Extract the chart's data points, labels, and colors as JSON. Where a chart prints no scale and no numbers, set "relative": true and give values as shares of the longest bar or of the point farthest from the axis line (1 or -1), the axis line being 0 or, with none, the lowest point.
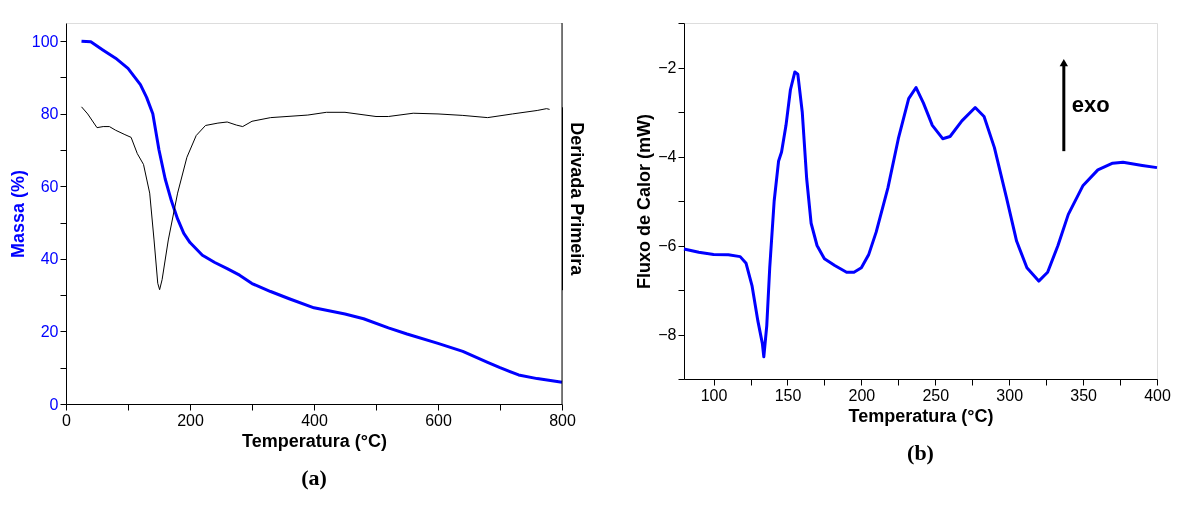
{
  "chart_data": [
    {
      "type": "line",
      "title": "(a)",
      "xlabel": "Temperatura (°C)",
      "ylabel": "Massa (%)",
      "xlim": [
        0,
        800
      ],
      "xticks": [
        0,
        {
          "value": 100,
          "label": null
        },
        200,
        {
          "value": 300,
          "label": null
        },
        400,
        {
          "value": 500,
          "label": null
        },
        600,
        {
          "value": 700,
          "label": null
        },
        800
      ],
      "ylim": [
        0,
        105
      ],
      "yticks": [
        0,
        {
          "value": 10,
          "label": null
        },
        20,
        {
          "value": 30,
          "label": null
        },
        40,
        {
          "value": 50,
          "label": null
        },
        60,
        {
          "value": 70,
          "label": null
        },
        80,
        {
          "value": 90,
          "label": null
        },
        100
      ],
      "series": [
        {
          "color": "#0000ff",
          "x": [
            25,
            40,
            60,
            80,
            100,
            120,
            130,
            140,
            150,
            160,
            170,
            180,
            190,
            200,
            220,
            240,
            260,
            280,
            300,
            330,
            360,
            400,
            450,
            480,
            520,
            550,
            600,
            640,
            680,
            700,
            730,
            760,
            800
          ],
          "values": [
            100,
            99.8,
            97.5,
            95.3,
            92.5,
            88,
            84.5,
            80,
            70,
            62,
            56,
            51,
            47,
            44.5,
            41,
            39,
            37.3,
            35.5,
            33.2,
            31,
            29,
            26.5,
            24.8,
            23.5,
            21,
            19.3,
            16.7,
            14.5,
            11.5,
            10,
            8,
            7,
            6
          ]
        }
      ]
    },
    {
      "type": "line",
      "ylabel": "Derivada Primeira",
      "relative": true,
      "xlim": [
        0,
        800
      ],
      "series": [
        {
          "color": "#000000",
          "x": [
            25,
            35,
            50,
            60,
            70,
            80,
            95,
            105,
            115,
            125,
            135,
            142,
            148,
            151,
            155,
            165,
            180,
            195,
            210,
            225,
            245,
            260,
            275,
            285,
            300,
            330,
            390,
            420,
            450,
            500,
            520,
            560,
            600,
            640,
            680,
            720,
            760,
            775,
            780
          ],
          "values": [
            1.0,
            0.961,
            0.886,
            0.892,
            0.892,
            0.872,
            0.848,
            0.833,
            0.744,
            0.685,
            0.528,
            0.272,
            0.035,
            0,
            0.055,
            0.272,
            0.528,
            0.724,
            0.843,
            0.898,
            0.911,
            0.917,
            0.9,
            0.892,
            0.921,
            0.941,
            0.955,
            0.97,
            0.97,
            0.947,
            0.947,
            0.965,
            0.961,
            0.953,
            0.941,
            0.961,
            0.98,
            0.99,
            0.986
          ]
        }
      ]
    },
    {
      "type": "line",
      "title": "(b)",
      "xlabel": "Temperatura (°C)",
      "ylabel": "Fluxo de Calor (mW)",
      "annotations": [
        "exo"
      ],
      "xlim": [
        80,
        400
      ],
      "xticks": [
        100,
        {
          "value": 125,
          "label": null
        },
        150,
        {
          "value": 175,
          "label": null
        },
        200,
        {
          "value": 225,
          "label": null
        },
        250,
        {
          "value": 275,
          "label": null
        },
        300,
        {
          "value": 325,
          "label": null
        },
        350,
        {
          "value": 375,
          "label": null
        },
        400
      ],
      "ylim": [
        -9,
        -1
      ],
      "yticks": [
        {
          "value": -9,
          "label": null
        },
        -8,
        {
          "value": -7,
          "label": null
        },
        -6,
        {
          "value": -5,
          "label": null
        },
        -4,
        {
          "value": -3,
          "label": null
        },
        -2,
        {
          "value": -1,
          "label": null
        }
      ],
      "series": [
        {
          "color": "#0000ff",
          "x": [
            80,
            90,
            100,
            110,
            118,
            122,
            126,
            130,
            133,
            134,
            136,
            138,
            141,
            144,
            146,
            149,
            152,
            155,
            157,
            160,
            163,
            166,
            170,
            175,
            182,
            190,
            195,
            200,
            205,
            210,
            218,
            225,
            232,
            237,
            242,
            248,
            255,
            260,
            268,
            277,
            283,
            290,
            298,
            305,
            312,
            320,
            326,
            333,
            340,
            350,
            360,
            370,
            377,
            390,
            400
          ],
          "values": [
            -6.08,
            -6.15,
            -6.2,
            -6.21,
            -6.25,
            -6.4,
            -6.9,
            -7.7,
            -8.2,
            -8.5,
            -7.8,
            -6.5,
            -5.0,
            -4.1,
            -3.9,
            -3.3,
            -2.5,
            -2.1,
            -2.15,
            -3.0,
            -4.5,
            -5.5,
            -6.0,
            -6.3,
            -6.45,
            -6.6,
            -6.6,
            -6.5,
            -6.2,
            -5.7,
            -4.7,
            -3.6,
            -2.7,
            -2.45,
            -2.8,
            -3.3,
            -3.6,
            -3.55,
            -3.2,
            -2.9,
            -3.1,
            -3.8,
            -4.9,
            -5.9,
            -6.5,
            -6.8,
            -6.6,
            -6.0,
            -5.3,
            -4.65,
            -4.3,
            -4.15,
            -4.13,
            -4.2,
            -4.25
          ]
        }
      ]
    }
  ]
}
